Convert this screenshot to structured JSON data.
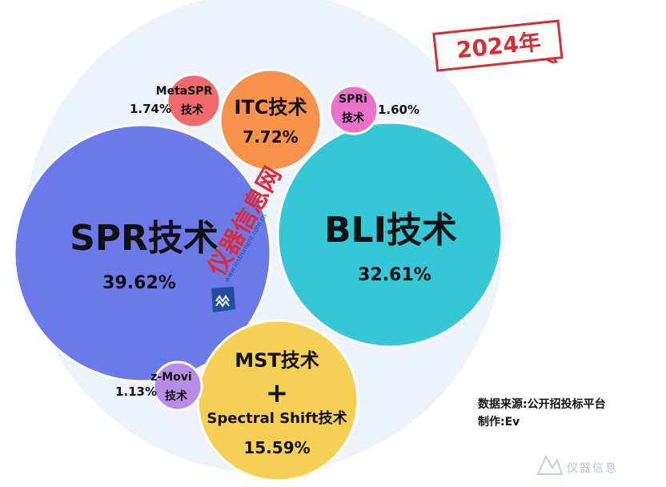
{
  "year_label": "2024年",
  "source_line": "数据来源:公开招投标平台",
  "author_line": "制作:Ev",
  "watermark_text": "仪器信息",
  "center_watermark_text": "仪器信息网",
  "center_watermark_url": "www.instrument.com.cn",
  "chart_data": {
    "type": "bubble",
    "series": [
      {
        "name": "SPR技术",
        "value": 39.62,
        "value_label": "39.62%",
        "color": "#6b7ae8"
      },
      {
        "name": "BLI技术",
        "value": 32.61,
        "value_label": "32.61%",
        "color": "#35c7d6"
      },
      {
        "name": "MST技术",
        "name_extra": [
          "+",
          "Spectral Shift技术"
        ],
        "value": 15.59,
        "value_label": "15.59%",
        "color": "#f6cf55"
      },
      {
        "name": "ITC技术",
        "value": 7.72,
        "value_label": "7.72%",
        "color": "#f6924a"
      },
      {
        "name": "MetaSPR技术",
        "value": 1.74,
        "value_label": "1.74%",
        "color": "#f06b6b"
      },
      {
        "name": "SPRi技术",
        "value": 1.6,
        "value_label": "1.60%",
        "color": "#e873c8"
      },
      {
        "name": "z-Movi技术",
        "value": 1.13,
        "value_label": "1.13%",
        "color": "#b98ce6"
      }
    ]
  }
}
